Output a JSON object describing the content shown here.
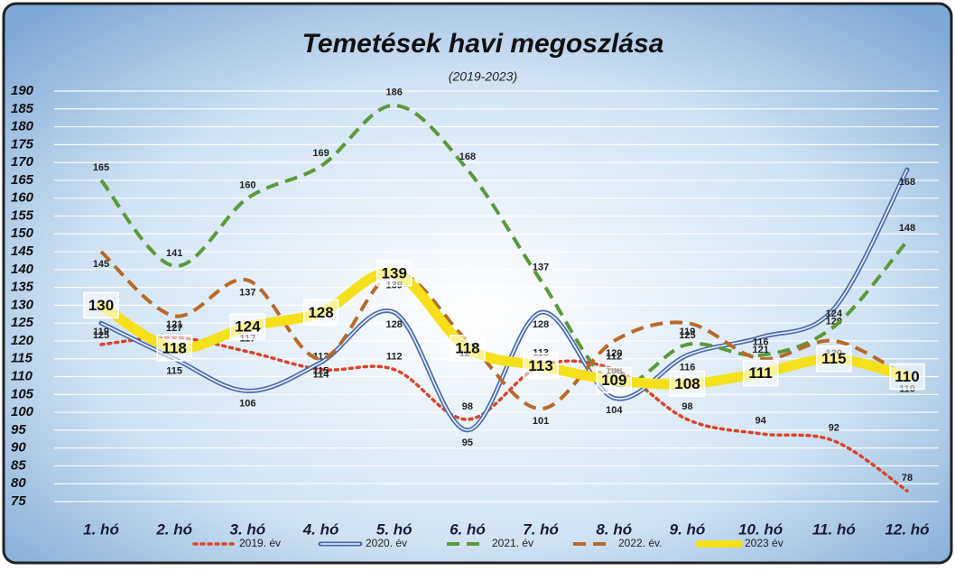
{
  "chart_data": {
    "type": "line",
    "title": "Temetések havi megoszlása",
    "subtitle": "(2019-2023)",
    "categories": [
      "1. hó",
      "2. hó",
      "3. hó",
      "4. hó",
      "5. hó",
      "6. hó",
      "7. hó",
      "8. hó",
      "9. hó",
      "10. hó",
      "11. hó",
      "12. hó"
    ],
    "ylim": [
      75,
      190
    ],
    "yticks": [
      75,
      80,
      85,
      90,
      95,
      100,
      105,
      110,
      115,
      120,
      125,
      130,
      135,
      140,
      145,
      150,
      155,
      160,
      165,
      170,
      175,
      180,
      185,
      190
    ],
    "grid": true,
    "legend": "bottom",
    "series": [
      {
        "name": "2019. év",
        "color": "#d9452b",
        "style": "dotted",
        "values": [
          119,
          121,
          117,
          112,
          112,
          98,
          113,
          112,
          98,
          94,
          92,
          78
        ]
      },
      {
        "name": "2020. év",
        "color": "#4a6bb0",
        "style": "double",
        "values": [
          125,
          115,
          106,
          114,
          128,
          95,
          128,
          104,
          116,
          121,
          129,
          168
        ]
      },
      {
        "name": "2021. év",
        "color": "#5a9a3a",
        "style": "dashed",
        "values": [
          165,
          141,
          160,
          169,
          186,
          168,
          137,
          108,
          119,
          116,
          124,
          148
        ]
      },
      {
        "name": "2022. év.",
        "color": "#b86a2a",
        "style": "dashed",
        "values": [
          145,
          127,
          137,
          115,
          139,
          120,
          101,
          120,
          125,
          115,
          120,
          110
        ]
      },
      {
        "name": "2023 év",
        "color": "#f5e01a",
        "style": "thick",
        "values": [
          130,
          118,
          124,
          128,
          139,
          118,
          113,
          109,
          108,
          111,
          115,
          110
        ]
      }
    ]
  }
}
